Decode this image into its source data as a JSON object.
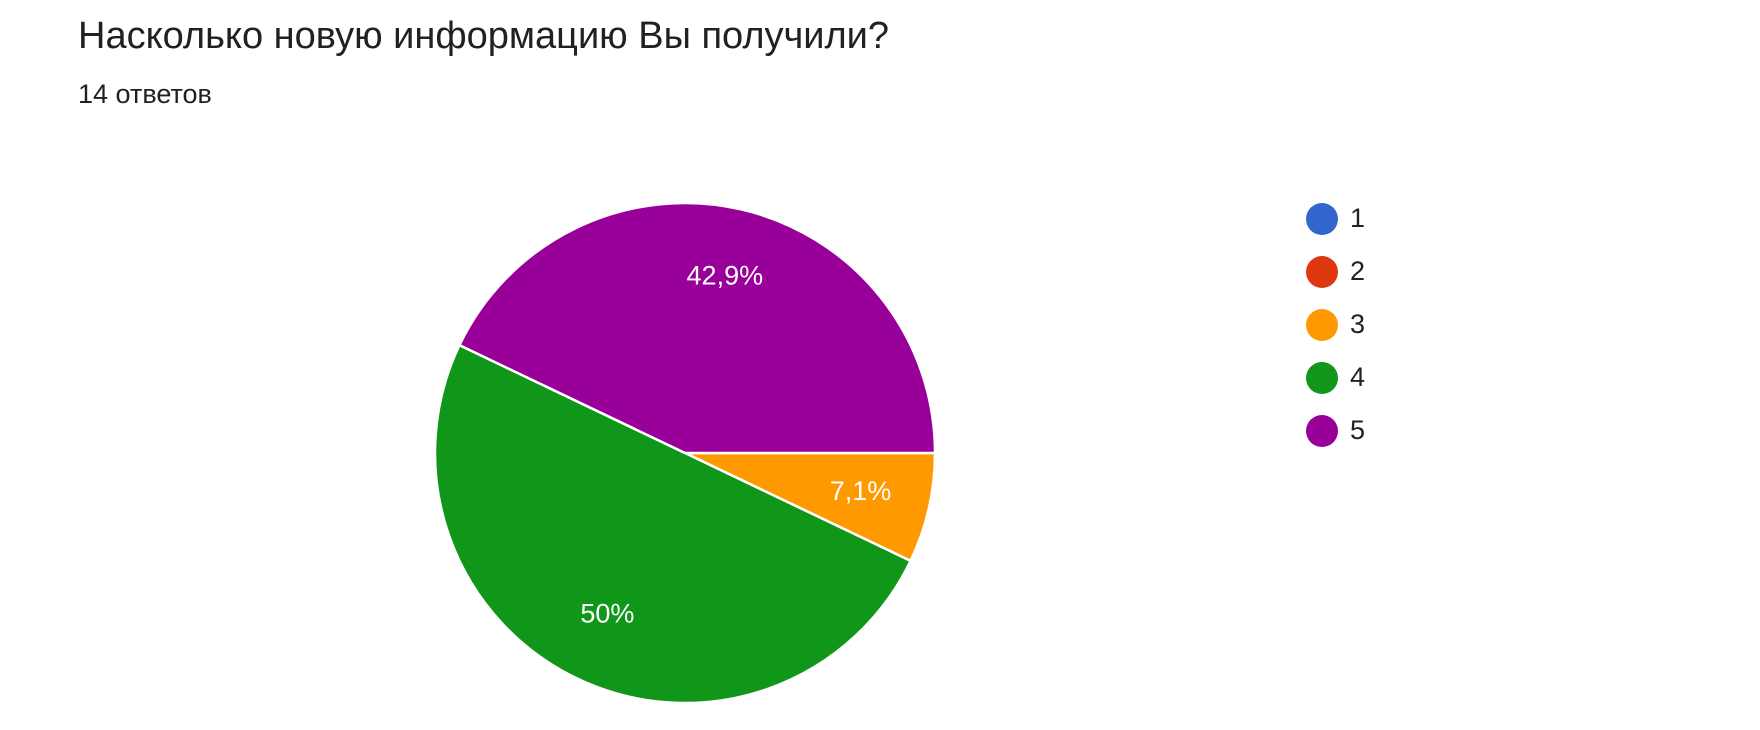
{
  "chart_data": {
    "type": "pie",
    "title": "Насколько новую информацию Вы получили?",
    "subtitle": "14 ответов",
    "categories": [
      "1",
      "2",
      "3",
      "4",
      "5"
    ],
    "values": [
      0,
      0,
      7.1,
      50,
      42.9
    ],
    "value_labels": [
      null,
      null,
      "7,1%",
      "50%",
      "42,9%"
    ],
    "colors": [
      "#3366cc",
      "#dc3912",
      "#ff9900",
      "#109618",
      "#990099"
    ],
    "legend": "right"
  }
}
